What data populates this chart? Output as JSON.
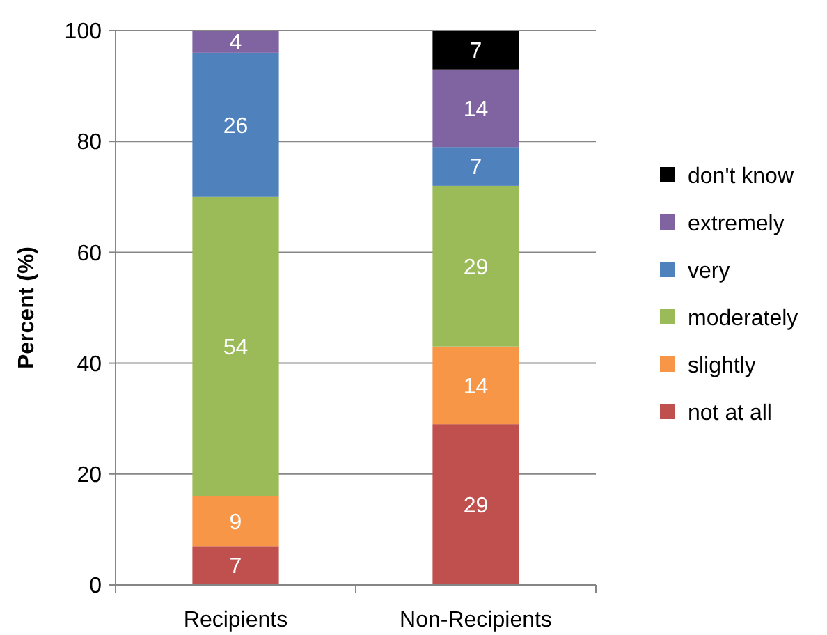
{
  "chart_data": {
    "type": "bar",
    "stacked": true,
    "ylabel": "Percent (%)",
    "categories": [
      "Recipients",
      "Non-Recipients"
    ],
    "ylim": [
      0,
      100
    ],
    "yticks": [
      0,
      20,
      40,
      60,
      80,
      100
    ],
    "grid": "y",
    "legend": "right",
    "series": [
      {
        "name": "not at all",
        "color": "#c0504d",
        "values": [
          7,
          29
        ],
        "value_labels": [
          "7",
          "29"
        ]
      },
      {
        "name": "slightly",
        "color": "#f79646",
        "values": [
          9,
          14
        ],
        "value_labels": [
          "9",
          "14"
        ]
      },
      {
        "name": "moderately",
        "color": "#9bbb59",
        "values": [
          54,
          29
        ],
        "value_labels": [
          "54",
          "29"
        ]
      },
      {
        "name": "very",
        "color": "#4f81bd",
        "values": [
          26,
          7
        ],
        "value_labels": [
          "26",
          "7"
        ]
      },
      {
        "name": "extremely",
        "color": "#8064a2",
        "values": [
          4,
          14
        ],
        "value_labels": [
          "4",
          "14"
        ]
      },
      {
        "name": "don't know",
        "color": "#000000",
        "values": [
          null,
          7
        ],
        "value_labels": [
          null,
          "7"
        ]
      }
    ]
  }
}
